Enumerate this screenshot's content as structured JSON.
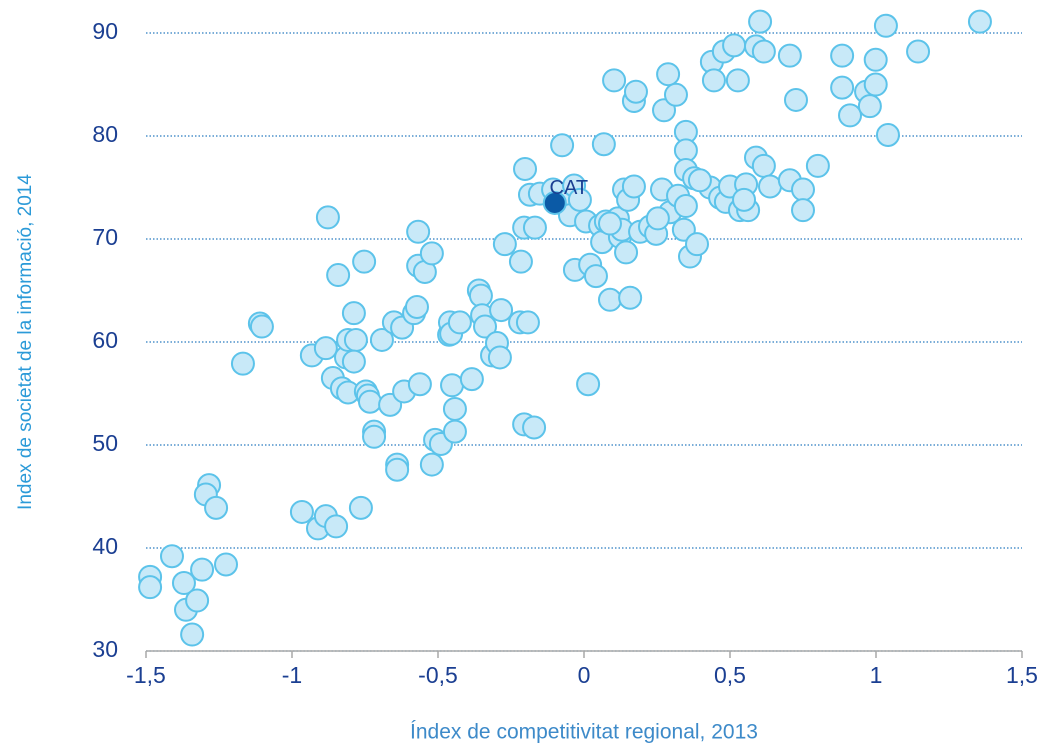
{
  "chart_data": {
    "type": "scatter",
    "xlabel": "Índex de competitivitat regional, 2013",
    "ylabel": "Index de societat de la informació, 2014",
    "xlim": [
      -1.5,
      1.5
    ],
    "ylim": [
      30,
      90
    ],
    "xticks": [
      {
        "value": -1.5,
        "label": "-1,5"
      },
      -1,
      {
        "value": -0.5,
        "label": "-0,5"
      },
      0,
      {
        "value": 0.5,
        "label": "0,5"
      },
      1,
      {
        "value": 1.5,
        "label": "1,5"
      }
    ],
    "yticks": [
      30,
      40,
      50,
      60,
      70,
      80,
      90
    ],
    "grid": true,
    "color": "#c8e9f8",
    "edge_color": "#5cc3ea",
    "x": [
      -1.486,
      -1.486,
      -1.411,
      -1.37,
      -1.363,
      -1.342,
      -1.325,
      -1.308,
      -1.284,
      -1.295,
      -1.26,
      -1.226,
      -1.168,
      -1.11,
      -1.103,
      -0.966,
      -0.932,
      -0.911,
      -0.884,
      -0.877,
      -0.884,
      -0.849,
      -0.86,
      -0.842,
      -0.829,
      -0.808,
      -0.815,
      -0.808,
      -0.788,
      -0.781,
      -0.788,
      -0.764,
      -0.753,
      -0.747,
      -0.74,
      -0.733,
      -0.719,
      -0.719,
      -0.692,
      -0.664,
      -0.651,
      -0.64,
      -0.64,
      -0.623,
      -0.616,
      -0.582,
      -0.572,
      -0.568,
      -0.568,
      -0.562,
      -0.545,
      -0.521,
      -0.521,
      -0.51,
      -0.49,
      -0.462,
      -0.459,
      -0.455,
      -0.452,
      -0.442,
      -0.442,
      -0.425,
      -0.384,
      -0.36,
      -0.353,
      -0.349,
      -0.339,
      -0.315,
      -0.298,
      -0.288,
      -0.284,
      -0.271,
      -0.219,
      -0.216,
      -0.205,
      -0.205,
      -0.202,
      -0.192,
      -0.185,
      -0.171,
      -0.168,
      -0.151,
      -0.106,
      -0.075,
      -0.062,
      -0.055,
      -0.048,
      -0.034,
      -0.031,
      -0.014,
      0.007,
      0.014,
      0.021,
      0.041,
      0.055,
      0.062,
      0.068,
      0.075,
      0.089,
      0.103,
      0.116,
      0.123,
      0.13,
      0.137,
      0.144,
      0.151,
      0.158,
      0.171,
      0.171,
      0.178,
      0.192,
      0.226,
      0.247,
      0.267,
      0.274,
      0.288,
      0.295,
      0.315,
      0.322,
      0.342,
      0.349,
      0.349,
      0.349,
      0.349,
      0.363,
      0.377,
      0.387,
      0.432,
      0.438,
      0.445,
      0.466,
      0.479,
      0.486,
      0.5,
      0.514,
      0.527,
      0.534,
      0.555,
      0.562,
      0.589,
      0.589,
      0.603,
      0.616,
      0.616,
      0.637,
      0.705,
      0.705,
      0.726,
      0.75,
      0.75,
      0.801,
      0.884,
      0.884,
      0.911,
      0.966,
      0.979,
      0.999,
      0.999,
      1.034,
      1.041,
      1.144,
      1.356,
      0.089,
      0.253,
      0.397,
      0.548
    ],
    "y": [
      37.2,
      36.2,
      39.2,
      36.6,
      34.0,
      31.6,
      34.9,
      37.9,
      46.1,
      45.2,
      43.9,
      38.4,
      57.9,
      61.8,
      61.5,
      43.5,
      58.7,
      41.9,
      43.1,
      72.1,
      59.4,
      42.1,
      56.5,
      66.5,
      55.5,
      55.1,
      58.5,
      60.2,
      62.8,
      60.2,
      58.1,
      43.9,
      67.8,
      55.2,
      54.8,
      54.2,
      51.3,
      50.8,
      60.2,
      53.9,
      61.9,
      48.1,
      47.6,
      61.4,
      55.2,
      62.8,
      63.4,
      70.7,
      67.4,
      55.9,
      66.8,
      68.6,
      48.1,
      50.5,
      50.1,
      60.7,
      61.9,
      60.8,
      55.8,
      51.3,
      53.5,
      61.9,
      56.4,
      65.0,
      64.5,
      62.6,
      61.5,
      58.7,
      59.9,
      58.5,
      63.1,
      69.5,
      61.9,
      67.8,
      71.1,
      52.0,
      76.8,
      61.9,
      74.3,
      51.7,
      71.1,
      74.4,
      74.8,
      79.1,
      73.2,
      73.7,
      72.3,
      75.2,
      67.0,
      73.8,
      71.7,
      55.9,
      67.5,
      66.4,
      71.3,
      69.7,
      79.2,
      71.7,
      64.1,
      85.4,
      72.0,
      70.2,
      70.9,
      74.8,
      68.7,
      73.8,
      64.3,
      75.1,
      83.4,
      84.3,
      70.7,
      71.2,
      70.5,
      74.8,
      82.5,
      86.0,
      72.6,
      84.0,
      74.2,
      70.9,
      80.4,
      78.6,
      76.7,
      73.2,
      68.3,
      75.9,
      69.5,
      75.0,
      87.2,
      85.4,
      74.0,
      88.2,
      73.6,
      75.1,
      88.8,
      85.4,
      72.8,
      75.3,
      72.8,
      88.7,
      77.9,
      91.1,
      88.2,
      77.1,
      75.1,
      87.8,
      75.7,
      83.5,
      74.8,
      72.8,
      77.1,
      87.8,
      84.7,
      82.0,
      84.3,
      82.9,
      87.4,
      85.0,
      90.7,
      80.1,
      88.2,
      91.1,
      71.5,
      72.0,
      75.7,
      73.8
    ],
    "highlight": {
      "label": "CAT",
      "x": -0.1,
      "y": 73.5,
      "color": "#0b5aa6"
    }
  }
}
